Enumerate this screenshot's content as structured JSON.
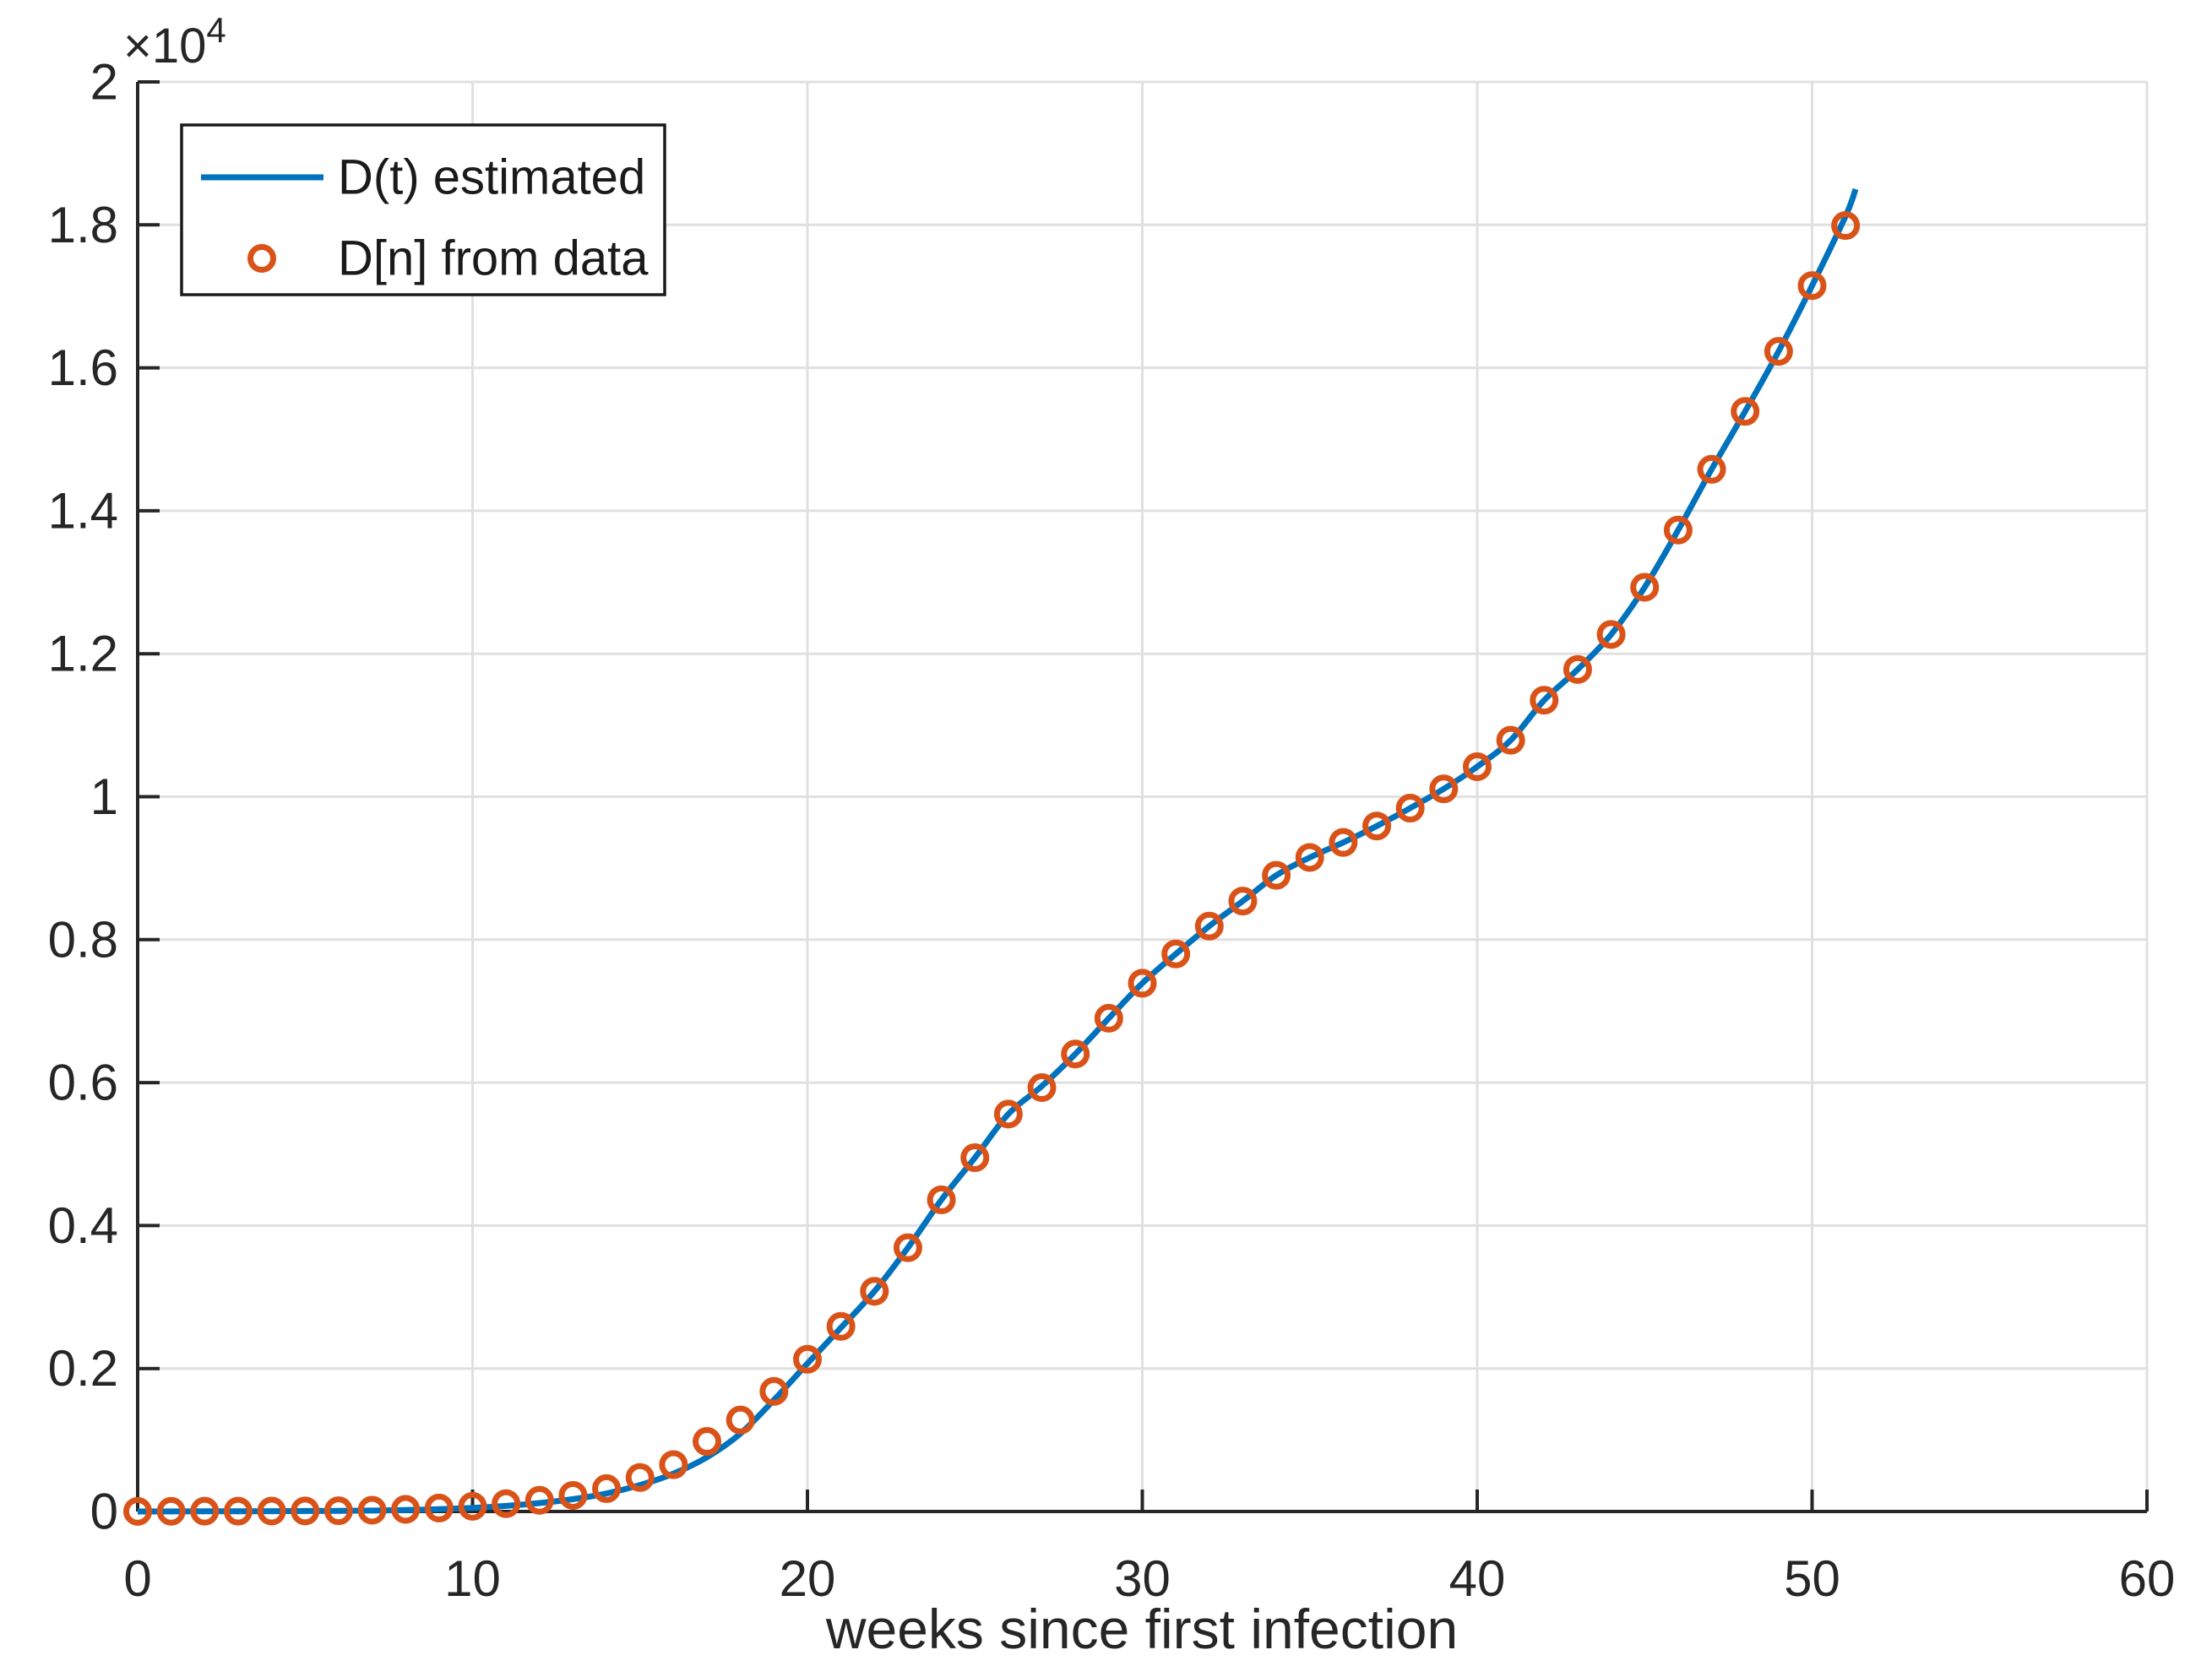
{
  "figure": {
    "background": "#ffffff"
  },
  "colors": {
    "line_blue": "#0072BD",
    "marker_orange": "#D95319",
    "axis_dark": "#262626",
    "grid_gray": "#E0E0E0",
    "legend_border": "#1a1a1a",
    "legend_background": "#ffffff"
  },
  "chart_data": {
    "type": "line",
    "title": "",
    "xlabel": "weeks since first infection",
    "ylabel": "",
    "y_axis_exponent": {
      "base": "×10",
      "power": "4"
    },
    "xlim": [
      0,
      60
    ],
    "ylim": [
      0,
      20000
    ],
    "grid": true,
    "x_ticks": [
      {
        "value": 0,
        "label": "0"
      },
      {
        "value": 10,
        "label": "10"
      },
      {
        "value": 20,
        "label": "20"
      },
      {
        "value": 30,
        "label": "30"
      },
      {
        "value": 40,
        "label": "40"
      },
      {
        "value": 50,
        "label": "50"
      },
      {
        "value": 60,
        "label": "60"
      }
    ],
    "y_ticks": [
      {
        "value": 0,
        "label": "0"
      },
      {
        "value": 2000,
        "label": "0.2"
      },
      {
        "value": 4000,
        "label": "0.4"
      },
      {
        "value": 6000,
        "label": "0.6"
      },
      {
        "value": 8000,
        "label": "0.8"
      },
      {
        "value": 10000,
        "label": "1"
      },
      {
        "value": 12000,
        "label": "1.2"
      },
      {
        "value": 14000,
        "label": "1.4"
      },
      {
        "value": 16000,
        "label": "1.6"
      },
      {
        "value": 18000,
        "label": "1.8"
      },
      {
        "value": 20000,
        "label": "2"
      }
    ],
    "legend": {
      "position": "northwest"
    },
    "series": [
      {
        "name": "D(t) estimated",
        "type": "line",
        "color": "#0072BD",
        "line_width": 7,
        "points": [
          [
            0,
            0
          ],
          [
            2,
            2
          ],
          [
            4,
            5
          ],
          [
            6,
            9
          ],
          [
            7,
            13
          ],
          [
            8,
            20
          ],
          [
            9,
            32
          ],
          [
            10,
            50
          ],
          [
            11,
            78
          ],
          [
            12,
            118
          ],
          [
            13,
            172
          ],
          [
            14,
            252
          ],
          [
            15,
            370
          ],
          [
            16,
            530
          ],
          [
            17,
            760
          ],
          [
            18,
            1090
          ],
          [
            19,
            1560
          ],
          [
            20,
            2070
          ],
          [
            21,
            2570
          ],
          [
            22,
            3080
          ],
          [
            23,
            3690
          ],
          [
            24,
            4360
          ],
          [
            25,
            4950
          ],
          [
            26,
            5560
          ],
          [
            27,
            5950
          ],
          [
            28,
            6400
          ],
          [
            29,
            6900
          ],
          [
            30,
            7390
          ],
          [
            31,
            7800
          ],
          [
            32,
            8190
          ],
          [
            33,
            8540
          ],
          [
            34,
            8900
          ],
          [
            35,
            9150
          ],
          [
            36,
            9360
          ],
          [
            37,
            9590
          ],
          [
            38,
            9840
          ],
          [
            39,
            10110
          ],
          [
            40,
            10420
          ],
          [
            41,
            10790
          ],
          [
            42,
            11350
          ],
          [
            43,
            11780
          ],
          [
            44,
            12270
          ],
          [
            45,
            12930
          ],
          [
            46,
            13730
          ],
          [
            47,
            14580
          ],
          [
            48,
            15390
          ],
          [
            49,
            16230
          ],
          [
            50,
            17150
          ],
          [
            51,
            18120
          ],
          [
            51.3,
            18500
          ]
        ]
      },
      {
        "name": "D[n] from data",
        "type": "scatter",
        "color": "#D95319",
        "marker": "circle",
        "marker_radius": 13.5,
        "marker_stroke": 7,
        "x": [
          0,
          1,
          2,
          3,
          4,
          5,
          6,
          7,
          8,
          9,
          10,
          11,
          12,
          13,
          14,
          15,
          16,
          17,
          18,
          19,
          20,
          21,
          22,
          23,
          24,
          25,
          26,
          27,
          28,
          29,
          30,
          31,
          32,
          33,
          34,
          35,
          36,
          37,
          38,
          39,
          40,
          41,
          42,
          43,
          44,
          45,
          46,
          47,
          48,
          49,
          50,
          51
        ],
        "y": [
          2,
          3,
          4,
          5,
          6,
          8,
          10,
          18,
          30,
          48,
          72,
          110,
          157,
          225,
          320,
          475,
          655,
          980,
          1280,
          1680,
          2130,
          2590,
          3080,
          3690,
          4360,
          4950,
          5560,
          5930,
          6400,
          6900,
          7390,
          7800,
          8190,
          8540,
          8900,
          9150,
          9360,
          9590,
          9840,
          10110,
          10420,
          10790,
          11350,
          11780,
          12270,
          12930,
          13730,
          14580,
          15390,
          16230,
          17150,
          17990
        ]
      }
    ]
  }
}
